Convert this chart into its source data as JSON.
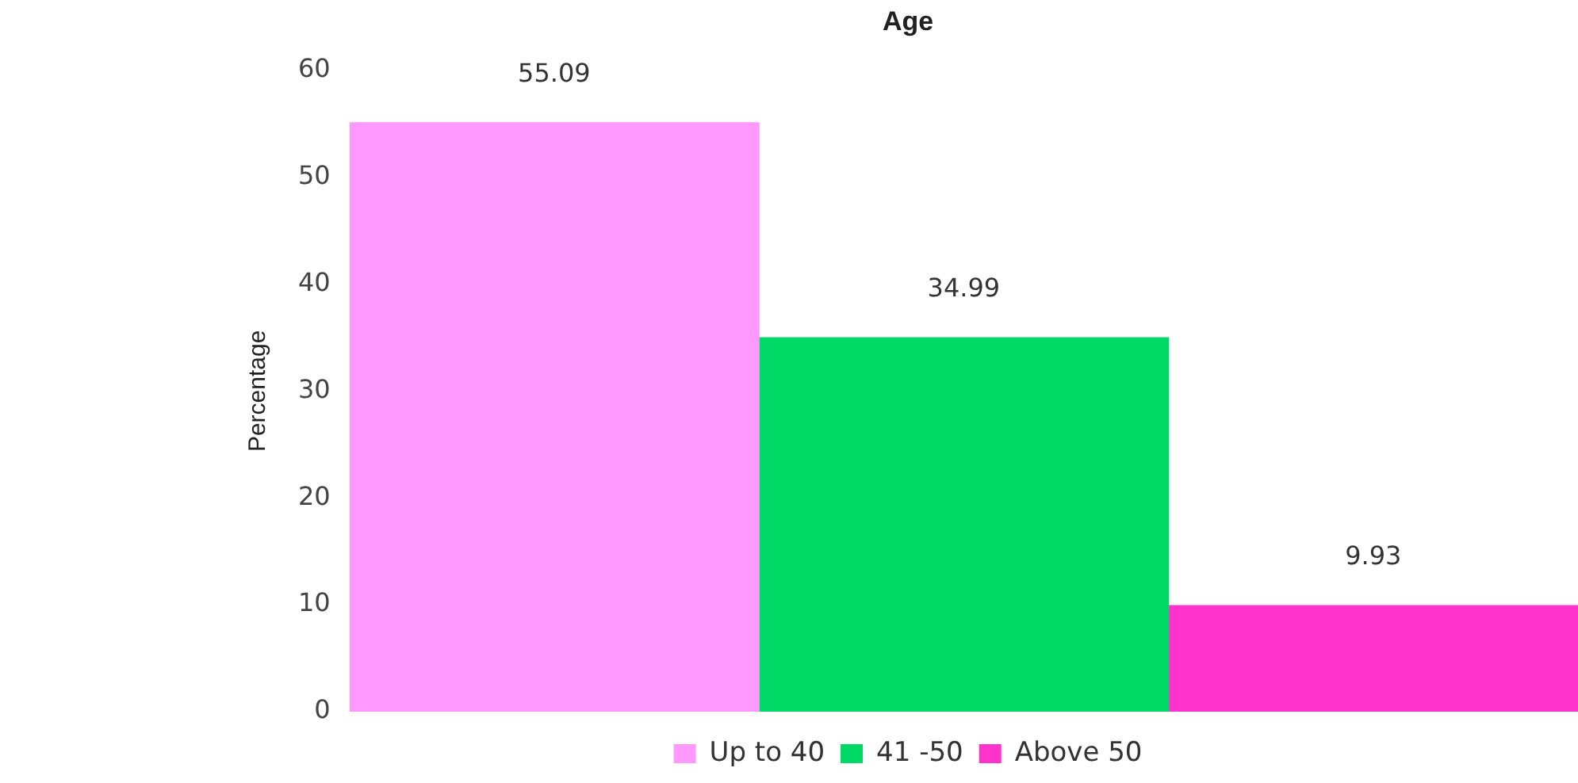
{
  "chart_data": {
    "type": "bar",
    "title": "Age",
    "ylabel": "Percentage",
    "categories": [
      null
    ],
    "series": [
      {
        "name": "Up to 40",
        "color": "#ff99ff",
        "values": [
          55.09
        ]
      },
      {
        "name": "41 -50",
        "color": "#00d966",
        "values": [
          34.99
        ]
      },
      {
        "name": "Above 50",
        "color": "#ff33cc",
        "values": [
          9.93
        ]
      }
    ],
    "ylim": [
      0,
      60
    ],
    "yticks": [
      0,
      10,
      20,
      30,
      40,
      50,
      60
    ],
    "grid": false,
    "legend": "bottom",
    "data_labels": true
  }
}
